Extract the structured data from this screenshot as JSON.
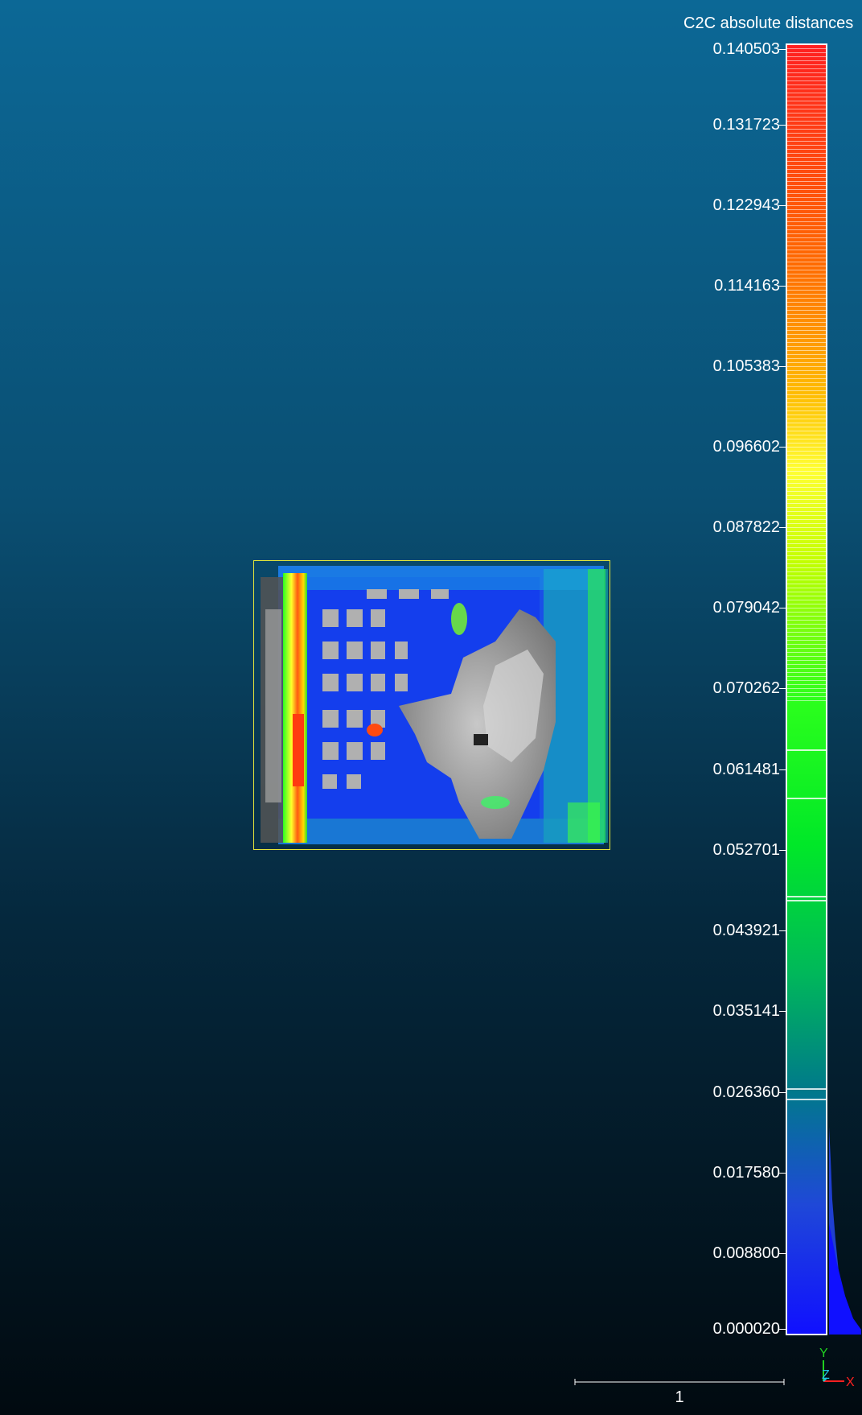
{
  "colorscale": {
    "title": "C2C absolute distances",
    "ticks": [
      "0.140503",
      "0.131723",
      "0.122943",
      "0.114163",
      "0.105383",
      "0.096602",
      "0.087822",
      "0.079042",
      "0.070262",
      "0.061481",
      "0.052701",
      "0.043921",
      "0.035141",
      "0.026360",
      "0.017580",
      "0.008800",
      "0.000020"
    ],
    "colors": {
      "max": "#ff2020",
      "mid": "#2bff1c",
      "min": "#1010ff"
    }
  },
  "axes": {
    "x": "X",
    "y": "Y",
    "z": "Z"
  },
  "ruler": {
    "label": "1"
  },
  "point_cloud": {
    "icon": "point-cloud-render",
    "bbox_color": "#e6e63a"
  }
}
